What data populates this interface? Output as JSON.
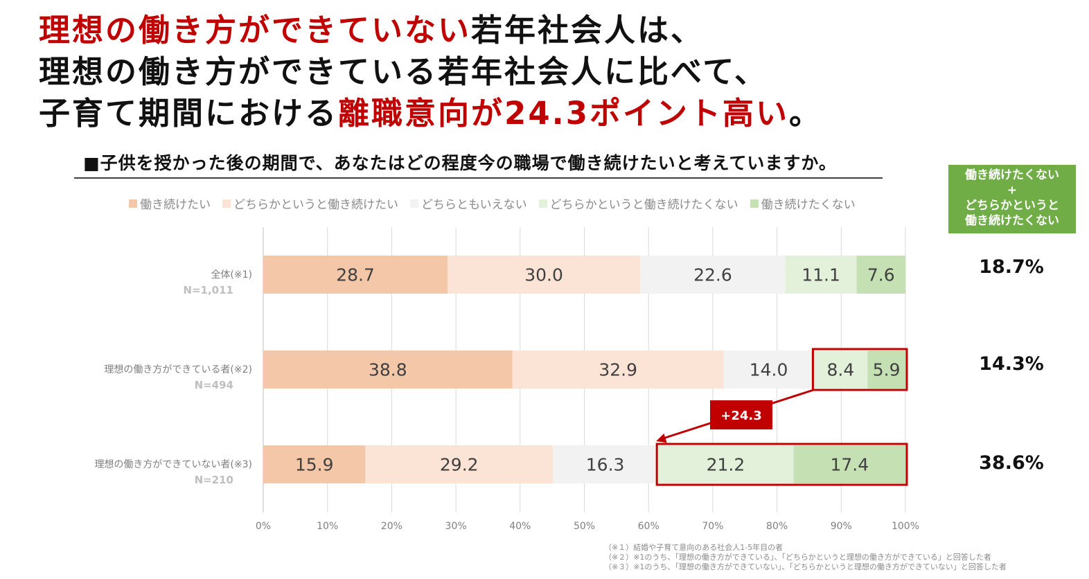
{
  "headline": {
    "line1_red": "理想の働き方ができていない",
    "line1_black": "若年社会人は、",
    "line2": "理想の働き方ができている若年社会人に比べて、",
    "line3_black": "子育て期間における",
    "line3_red": "離職意向が24.3ポイント高い",
    "line3_end": "。"
  },
  "question": "■子供を授かった後の期間で、あなたはどの程度今の職場で働き続けたいと考えていますか。",
  "side_header": {
    "line1": "働き続けたくない",
    "plus": "+",
    "line2": "どちらかというと",
    "line3": "働き続けたくない"
  },
  "totals": [
    "18.7%",
    "14.3%",
    "38.6%"
  ],
  "callout": "+24.3",
  "notes": [
    "（※１）結婚や子育て意向のある社会人1-5年目の者",
    "（※２）※1のうち、「理想の働き方ができている」、「どちらかというと理想の働き方ができている」と回答した者",
    "（※３）※1のうち、「理想の働き方ができていない」、「どちらかというと理想の働き方ができていない」と回答した者"
  ],
  "colors": {
    "s1": "#f4c7a8",
    "s2": "#fbe3d5",
    "s3": "#f2f2f2",
    "s4": "#e3f0da",
    "s5": "#c5e0b3",
    "accent_red": "#c00000",
    "green": "#70ad47"
  },
  "chart_data": {
    "type": "bar",
    "orientation": "horizontal",
    "stacked": true,
    "categories": [
      "全体(※1)",
      "理想の働き方ができている者(※2)",
      "理想の働き方ができていない者(※3)"
    ],
    "sample_sizes": [
      "N=1,011",
      "N=494",
      "N=210"
    ],
    "series": [
      {
        "name": "働き続けたい",
        "values": [
          28.7,
          38.8,
          15.9
        ]
      },
      {
        "name": "どちらかというと働き続けたい",
        "values": [
          30.0,
          32.9,
          29.2
        ]
      },
      {
        "name": "どちらともいえない",
        "values": [
          22.6,
          14.0,
          16.3
        ]
      },
      {
        "name": "どちらかというと働き続けたくない",
        "values": [
          11.1,
          8.4,
          21.2
        ]
      },
      {
        "name": "働き続けたくない",
        "values": [
          7.6,
          5.9,
          17.4
        ]
      }
    ],
    "xlim": [
      0,
      100
    ],
    "xticks": [
      "0%",
      "10%",
      "20%",
      "30%",
      "40%",
      "50%",
      "60%",
      "70%",
      "80%",
      "90%",
      "100%"
    ],
    "grid": true,
    "legend_position": "top"
  }
}
